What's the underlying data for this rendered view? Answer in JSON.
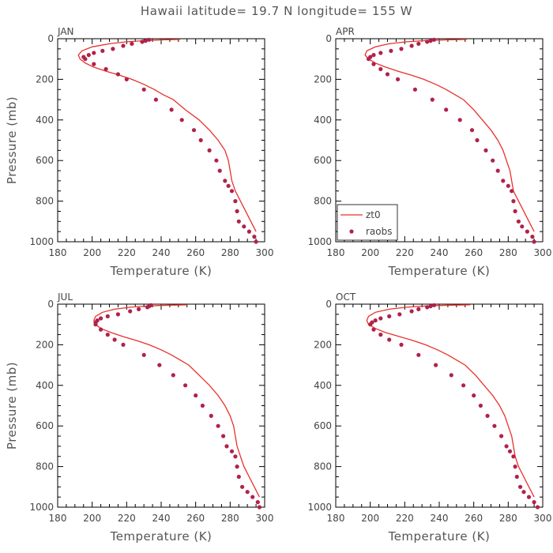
{
  "figure_title": "Hawaii  latitude= 19.7 N longitude= 155 W",
  "colors": {
    "model": "#e8312a",
    "obs": "#b0224a",
    "frame": "#000000",
    "text": "#444444"
  },
  "legend": {
    "model_label": "zt0",
    "obs_label": "raobs"
  },
  "chart_data": [
    {
      "type": "scatter",
      "title": "JAN",
      "xlabel": "Temperature (K)",
      "ylabel": "Pressure (mb)",
      "xlim": [
        180,
        300
      ],
      "ylim": [
        1000,
        0
      ],
      "xticks": [
        180,
        200,
        220,
        240,
        260,
        280,
        300
      ],
      "yticks": [
        0,
        200,
        400,
        600,
        800,
        1000
      ],
      "grid": false,
      "legend": "none",
      "series": [
        {
          "name": "zt0",
          "kind": "line",
          "x": [
            251,
            242,
            236,
            229,
            220,
            210,
            200,
            194,
            192,
            193,
            196,
            201,
            208,
            216,
            223,
            230,
            236,
            241,
            247,
            254,
            262,
            268,
            273,
            277,
            279,
            280,
            281,
            283,
            286,
            289,
            292,
            295
          ],
          "y": [
            3,
            5,
            7,
            10,
            15,
            25,
            40,
            60,
            80,
            100,
            120,
            140,
            160,
            180,
            200,
            225,
            250,
            275,
            300,
            350,
            400,
            450,
            500,
            550,
            600,
            650,
            700,
            750,
            800,
            850,
            900,
            950
          ]
        },
        {
          "name": "raobs",
          "kind": "points",
          "x": [
            233,
            231,
            229,
            223,
            218,
            212,
            206,
            201,
            198,
            195,
            196,
            201,
            208,
            215,
            220,
            230,
            237,
            246,
            252,
            259,
            263,
            268,
            272,
            274,
            277,
            279,
            281,
            283,
            284,
            285,
            288,
            291,
            294,
            295
          ],
          "y": [
            5,
            10,
            15,
            25,
            35,
            50,
            60,
            70,
            80,
            90,
            100,
            125,
            150,
            175,
            200,
            250,
            300,
            350,
            400,
            450,
            500,
            550,
            600,
            650,
            700,
            725,
            750,
            800,
            850,
            900,
            925,
            950,
            975,
            1000
          ]
        }
      ]
    },
    {
      "type": "scatter",
      "title": "APR",
      "xlabel": "Temperature (K)",
      "ylabel": "Pressure (mb)",
      "xlim": [
        180,
        300
      ],
      "ylim": [
        1000,
        0
      ],
      "xticks": [
        180,
        200,
        220,
        240,
        260,
        280,
        300
      ],
      "yticks": [
        0,
        200,
        400,
        600,
        800,
        1000
      ],
      "grid": false,
      "legend": "bottom-left",
      "series": [
        {
          "name": "zt0",
          "kind": "line",
          "x": [
            256,
            246,
            238,
            230,
            221,
            211,
            203,
            198,
            197,
            199,
            203,
            209,
            216,
            224,
            231,
            238,
            244,
            249,
            254,
            260,
            265,
            270,
            274,
            277,
            279,
            281,
            282,
            283,
            286,
            289,
            292,
            295
          ],
          "y": [
            3,
            5,
            7,
            10,
            15,
            25,
            40,
            60,
            80,
            100,
            120,
            140,
            160,
            180,
            200,
            225,
            250,
            275,
            300,
            350,
            400,
            450,
            500,
            550,
            600,
            650,
            700,
            750,
            800,
            850,
            900,
            950
          ]
        },
        {
          "name": "raobs",
          "kind": "points",
          "x": [
            237,
            235,
            233,
            228,
            224,
            218,
            212,
            206,
            202,
            200,
            199,
            202,
            206,
            210,
            216,
            226,
            236,
            244,
            252,
            259,
            262,
            267,
            271,
            274,
            277,
            280,
            282,
            283,
            284,
            286,
            288,
            291,
            294,
            295
          ],
          "y": [
            5,
            10,
            15,
            25,
            35,
            50,
            60,
            70,
            80,
            90,
            100,
            125,
            150,
            175,
            200,
            250,
            300,
            350,
            400,
            450,
            500,
            550,
            600,
            650,
            700,
            725,
            750,
            800,
            850,
            900,
            925,
            950,
            975,
            1000
          ]
        }
      ]
    },
    {
      "type": "scatter",
      "title": "JUL",
      "xlabel": "Temperature (K)",
      "ylabel": "Pressure (mb)",
      "xlim": [
        180,
        300
      ],
      "ylim": [
        1000,
        0
      ],
      "xticks": [
        180,
        200,
        220,
        240,
        260,
        280,
        300
      ],
      "yticks": [
        0,
        200,
        400,
        600,
        800,
        1000
      ],
      "grid": false,
      "legend": "none",
      "series": [
        {
          "name": "zt0",
          "kind": "line",
          "x": [
            255,
            245,
            238,
            230,
            222,
            213,
            206,
            202,
            201,
            202,
            205,
            211,
            218,
            226,
            233,
            240,
            246,
            251,
            256,
            262,
            268,
            273,
            277,
            280,
            282,
            283,
            284,
            286,
            288,
            291,
            294,
            297
          ],
          "y": [
            3,
            5,
            7,
            10,
            15,
            25,
            40,
            60,
            80,
            100,
            120,
            140,
            160,
            180,
            200,
            225,
            250,
            275,
            300,
            350,
            400,
            450,
            500,
            550,
            600,
            650,
            700,
            750,
            800,
            850,
            900,
            950
          ]
        },
        {
          "name": "raobs",
          "kind": "points",
          "x": [
            234,
            233,
            232,
            227,
            222,
            215,
            209,
            205,
            203,
            202,
            202,
            205,
            209,
            213,
            218,
            230,
            239,
            247,
            254,
            260,
            264,
            269,
            273,
            276,
            278,
            281,
            283,
            284,
            285,
            287,
            290,
            293,
            296,
            297
          ],
          "y": [
            5,
            10,
            15,
            25,
            35,
            50,
            60,
            70,
            80,
            90,
            100,
            125,
            150,
            175,
            200,
            250,
            300,
            350,
            400,
            450,
            500,
            550,
            600,
            650,
            700,
            725,
            750,
            800,
            850,
            900,
            925,
            950,
            975,
            1000
          ]
        }
      ]
    },
    {
      "type": "scatter",
      "title": "OCT",
      "xlabel": "Temperature (K)",
      "ylabel": "Pressure (mb)",
      "xlim": [
        180,
        300
      ],
      "ylim": [
        1000,
        0
      ],
      "xticks": [
        180,
        200,
        220,
        240,
        260,
        280,
        300
      ],
      "yticks": [
        0,
        200,
        400,
        600,
        800,
        1000
      ],
      "grid": false,
      "legend": "none",
      "series": [
        {
          "name": "zt0",
          "kind": "line",
          "x": [
            258,
            247,
            238,
            230,
            221,
            211,
            203,
            199,
            198,
            199,
            203,
            209,
            217,
            225,
            232,
            239,
            245,
            250,
            255,
            261,
            266,
            271,
            275,
            278,
            280,
            282,
            283,
            284,
            286,
            289,
            292,
            295
          ],
          "y": [
            3,
            5,
            7,
            10,
            15,
            25,
            40,
            60,
            80,
            100,
            120,
            140,
            160,
            180,
            200,
            225,
            250,
            275,
            300,
            350,
            400,
            450,
            500,
            550,
            600,
            650,
            700,
            750,
            800,
            850,
            900,
            950
          ]
        },
        {
          "name": "raobs",
          "kind": "points",
          "x": [
            237,
            235,
            233,
            228,
            224,
            217,
            211,
            206,
            203,
            201,
            200,
            202,
            206,
            211,
            218,
            228,
            238,
            247,
            254,
            260,
            264,
            268,
            272,
            276,
            279,
            281,
            283,
            284,
            285,
            287,
            289,
            292,
            295,
            297
          ],
          "y": [
            5,
            10,
            15,
            25,
            35,
            50,
            60,
            70,
            80,
            90,
            100,
            125,
            150,
            175,
            200,
            250,
            300,
            350,
            400,
            450,
            500,
            550,
            600,
            650,
            700,
            725,
            750,
            800,
            850,
            900,
            925,
            950,
            975,
            1000
          ]
        }
      ]
    }
  ]
}
